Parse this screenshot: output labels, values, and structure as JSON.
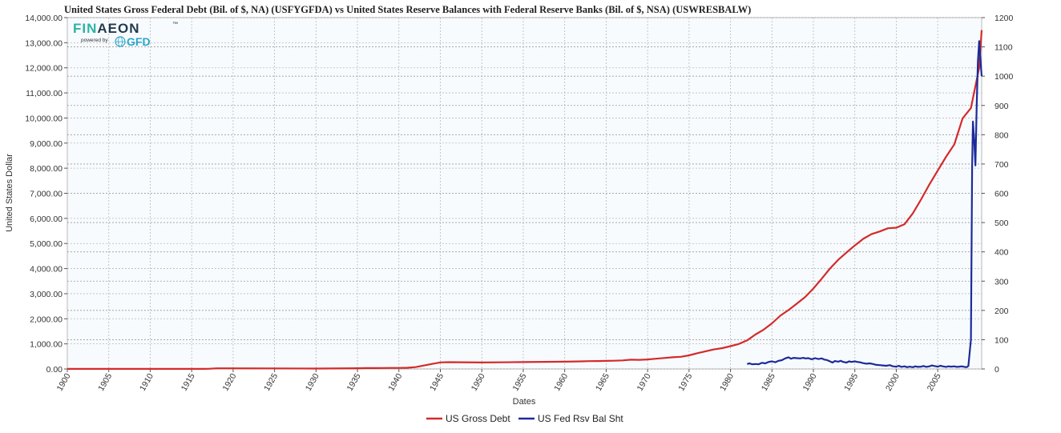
{
  "logo": {
    "brand_part1": "FIN",
    "brand_part2": "AEON",
    "tm": "™",
    "powered_by": "powered by",
    "gfd": "GFD",
    "colors": {
      "dark": "#1f3b4d",
      "teal": "#2bb3a3",
      "gfd": "#2aa7c9"
    }
  },
  "chart_data": {
    "type": "line",
    "title": "United States Gross Federal Debt (Bil. of $, NA) (USFYGFDA)  vs  United States Reserve Balances with Federal Reserve Banks (Bil. of $, NSA) (USWRESBALW)",
    "xlabel": "Dates",
    "ylabel_left": "United States Dollar",
    "ylabel_right": "",
    "xlim": [
      1900,
      2010.3
    ],
    "ylim_left": [
      0,
      14000
    ],
    "ylim_right": [
      0,
      1200
    ],
    "x_ticks": [
      "1900",
      "1905",
      "1910",
      "1915",
      "1920",
      "1925",
      "1930",
      "1935",
      "1940",
      "1945",
      "1950",
      "1955",
      "1960",
      "1965",
      "1970",
      "1975",
      "1980",
      "1985",
      "1990",
      "1995",
      "2000",
      "2005"
    ],
    "left_ticks": [
      "0.00",
      "1,000.00",
      "2,000.00",
      "3,000.00",
      "4,000.00",
      "5,000.00",
      "6,000.00",
      "7,000.00",
      "8,000.00",
      "9,000.00",
      "10,000.00",
      "11,000.00",
      "12,000.00",
      "13,000.00",
      "14,000.00"
    ],
    "right_ticks": [
      "0",
      "100",
      "200",
      "300",
      "400",
      "500",
      "600",
      "700",
      "800",
      "900",
      "1000",
      "1100",
      "1200"
    ],
    "grid": true,
    "legend_position": "bottom",
    "series": [
      {
        "name": "US Gross Debt",
        "axis": "left",
        "color": "#d42a2a",
        "points": [
          [
            1900,
            2
          ],
          [
            1910,
            2
          ],
          [
            1916,
            3
          ],
          [
            1917,
            7
          ],
          [
            1918,
            25
          ],
          [
            1919,
            27
          ],
          [
            1920,
            26
          ],
          [
            1925,
            21
          ],
          [
            1930,
            16
          ],
          [
            1935,
            29
          ],
          [
            1936,
            34
          ],
          [
            1937,
            36
          ],
          [
            1938,
            37
          ],
          [
            1939,
            40
          ],
          [
            1940,
            43
          ],
          [
            1941,
            49
          ],
          [
            1942,
            72
          ],
          [
            1943,
            137
          ],
          [
            1944,
            201
          ],
          [
            1945,
            260
          ],
          [
            1946,
            271
          ],
          [
            1950,
            257
          ],
          [
            1955,
            274
          ],
          [
            1960,
            290
          ],
          [
            1962,
            303
          ],
          [
            1963,
            311
          ],
          [
            1964,
            316
          ],
          [
            1965,
            322
          ],
          [
            1966,
            328
          ],
          [
            1967,
            340
          ],
          [
            1968,
            369
          ],
          [
            1969,
            365
          ],
          [
            1970,
            381
          ],
          [
            1971,
            408
          ],
          [
            1972,
            436
          ],
          [
            1973,
            466
          ],
          [
            1974,
            484
          ],
          [
            1975,
            542
          ],
          [
            1976,
            629
          ],
          [
            1977,
            706
          ],
          [
            1978,
            777
          ],
          [
            1979,
            829
          ],
          [
            1980,
            909
          ],
          [
            1981,
            995
          ],
          [
            1982,
            1137
          ],
          [
            1983,
            1372
          ],
          [
            1984,
            1565
          ],
          [
            1985,
            1817
          ],
          [
            1986,
            2121
          ],
          [
            1987,
            2346
          ],
          [
            1988,
            2601
          ],
          [
            1989,
            2868
          ],
          [
            1990,
            3206
          ],
          [
            1991,
            3598
          ],
          [
            1992,
            4002
          ],
          [
            1993,
            4351
          ],
          [
            1994,
            4643
          ],
          [
            1995,
            4921
          ],
          [
            1996,
            5182
          ],
          [
            1997,
            5369
          ],
          [
            1998,
            5478
          ],
          [
            1999,
            5606
          ],
          [
            2000,
            5629
          ],
          [
            2001,
            5770
          ],
          [
            2002,
            6198
          ],
          [
            2003,
            6760
          ],
          [
            2004,
            7355
          ],
          [
            2005,
            7905
          ],
          [
            2006,
            8451
          ],
          [
            2007,
            8951
          ],
          [
            2008,
            9986
          ],
          [
            2009,
            10400
          ],
          [
            2010,
            12000
          ],
          [
            2010.3,
            13500
          ]
        ]
      },
      {
        "name": "US Fed Rsv Bal Sht",
        "axis": "right",
        "color": "#1c2b9a",
        "points": [
          [
            1982,
            17
          ],
          [
            1982.3,
            19
          ],
          [
            1982.6,
            16
          ],
          [
            1983,
            17
          ],
          [
            1983.4,
            16
          ],
          [
            1983.8,
            21
          ],
          [
            1984.2,
            19
          ],
          [
            1984.6,
            24
          ],
          [
            1985,
            26
          ],
          [
            1985.4,
            23
          ],
          [
            1985.8,
            28
          ],
          [
            1986.2,
            30
          ],
          [
            1986.6,
            36
          ],
          [
            1987,
            40
          ],
          [
            1987.3,
            35
          ],
          [
            1987.6,
            38
          ],
          [
            1988,
            37
          ],
          [
            1988.4,
            36
          ],
          [
            1988.8,
            38
          ],
          [
            1989,
            36
          ],
          [
            1989.4,
            37
          ],
          [
            1989.8,
            33
          ],
          [
            1990.2,
            37
          ],
          [
            1990.6,
            34
          ],
          [
            1991,
            36
          ],
          [
            1991.3,
            32
          ],
          [
            1991.6,
            31
          ],
          [
            1992,
            26
          ],
          [
            1992.3,
            22
          ],
          [
            1992.6,
            27
          ],
          [
            1993,
            25
          ],
          [
            1993.3,
            28
          ],
          [
            1993.6,
            24
          ],
          [
            1994,
            22
          ],
          [
            1994.3,
            26
          ],
          [
            1994.6,
            24
          ],
          [
            1995,
            26
          ],
          [
            1995.3,
            24
          ],
          [
            1995.6,
            23
          ],
          [
            1996,
            20
          ],
          [
            1996.4,
            18
          ],
          [
            1996.8,
            19
          ],
          [
            1997.2,
            17
          ],
          [
            1997.6,
            14
          ],
          [
            1998,
            13
          ],
          [
            1998.4,
            12
          ],
          [
            1998.8,
            11
          ],
          [
            1999.2,
            13
          ],
          [
            1999.6,
            9
          ],
          [
            2000,
            8
          ],
          [
            2000.3,
            11
          ],
          [
            2000.6,
            7
          ],
          [
            2001,
            9
          ],
          [
            2001.3,
            6
          ],
          [
            2001.6,
            8
          ],
          [
            2002,
            6
          ],
          [
            2002.3,
            9
          ],
          [
            2002.6,
            7
          ],
          [
            2003,
            8
          ],
          [
            2003.3,
            10
          ],
          [
            2003.6,
            7
          ],
          [
            2004,
            9
          ],
          [
            2004.3,
            12
          ],
          [
            2004.6,
            10
          ],
          [
            2005,
            8
          ],
          [
            2005.3,
            11
          ],
          [
            2005.6,
            9
          ],
          [
            2006,
            7
          ],
          [
            2006.3,
            9
          ],
          [
            2006.6,
            8
          ],
          [
            2007,
            9
          ],
          [
            2007.3,
            7
          ],
          [
            2007.6,
            8
          ],
          [
            2007.9,
            9
          ],
          [
            2008.2,
            7
          ],
          [
            2008.5,
            6
          ],
          [
            2008.7,
            10
          ],
          [
            2009.0,
            100
          ],
          [
            2009.15,
            690
          ],
          [
            2009.25,
            845
          ],
          [
            2009.4,
            780
          ],
          [
            2009.55,
            695
          ],
          [
            2009.7,
            900
          ],
          [
            2009.85,
            1050
          ],
          [
            2010.0,
            1120
          ],
          [
            2010.15,
            1060
          ],
          [
            2010.3,
            1000
          ]
        ]
      }
    ]
  }
}
